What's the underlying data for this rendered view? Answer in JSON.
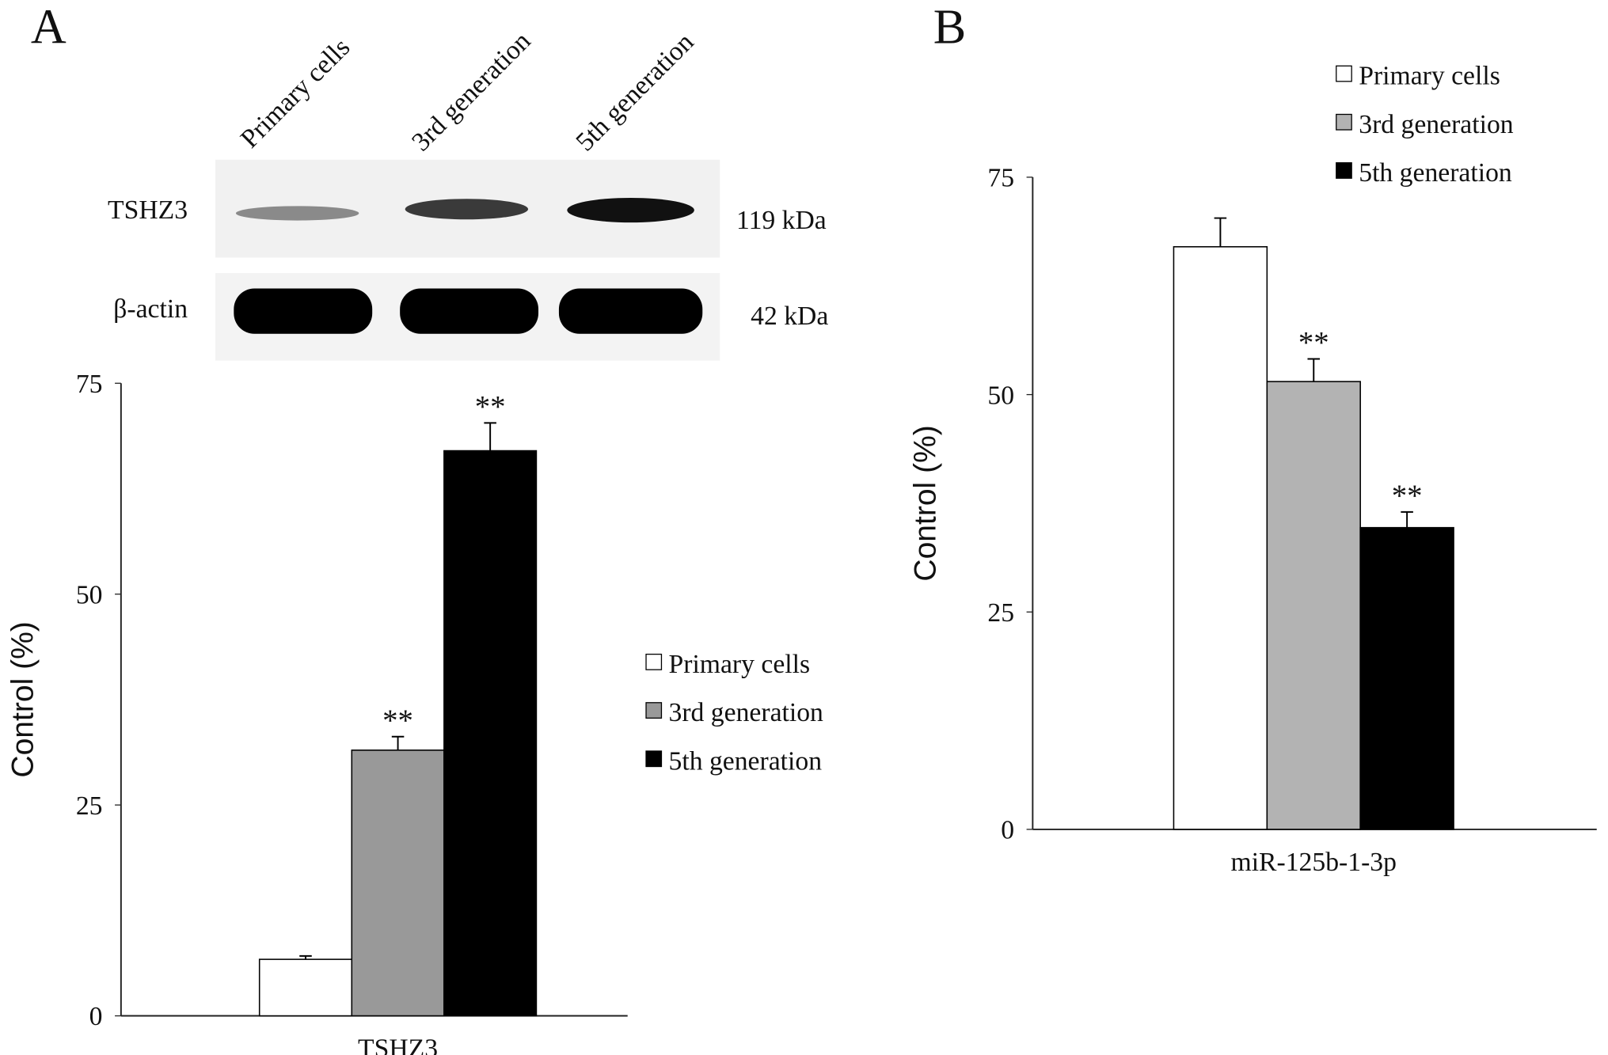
{
  "blot": {
    "lanes": [
      "Primary cells",
      "3rd generation",
      "5th generation"
    ],
    "rows": [
      {
        "protein": "TSHZ3",
        "size": "119 kDa"
      },
      {
        "protein": "β-actin",
        "size": "42 kDa"
      }
    ]
  },
  "chart_data": [
    {
      "panel": "A",
      "type": "bar",
      "ylabel": "Control (%)",
      "categories": [
        "TSHZ3"
      ],
      "ylim": [
        0,
        75
      ],
      "yticks": [
        0,
        25,
        50,
        75
      ],
      "series": [
        {
          "name": "Primary cells",
          "color": "#ffffff",
          "values": [
            6.7
          ],
          "errors": [
            0.4
          ]
        },
        {
          "name": "3rd generation",
          "color": "#999999",
          "values": [
            31.5
          ],
          "errors": [
            1.6
          ],
          "annotation": "**"
        },
        {
          "name": "5th generation",
          "color": "#000000",
          "values": [
            67
          ],
          "errors": [
            3.3
          ],
          "annotation": "**"
        }
      ]
    },
    {
      "panel": "B",
      "type": "bar",
      "ylabel": "Control (%)",
      "categories": [
        "miR-125b-1-3p"
      ],
      "ylim": [
        0,
        75
      ],
      "yticks": [
        0,
        25,
        50,
        75
      ],
      "series": [
        {
          "name": "Primary cells",
          "color": "#ffffff",
          "values": [
            67
          ],
          "errors": [
            3.3
          ]
        },
        {
          "name": "3rd generation",
          "color": "#b3b3b3",
          "values": [
            51.5
          ],
          "errors": [
            2.6
          ],
          "annotation": "**"
        },
        {
          "name": "5th generation",
          "color": "#000000",
          "values": [
            34.7
          ],
          "errors": [
            1.8
          ],
          "annotation": "**"
        }
      ]
    }
  ]
}
